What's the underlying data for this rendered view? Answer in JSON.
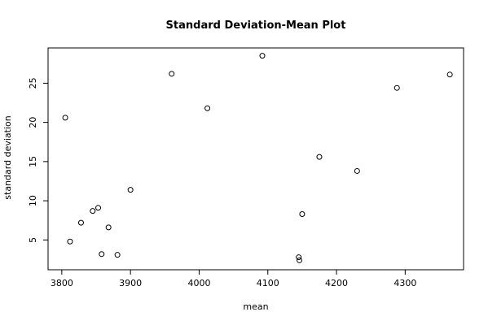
{
  "chart_data": {
    "type": "scatter",
    "title": "Standard Deviation-Mean Plot",
    "xlabel": "mean",
    "ylabel": "standard deviation",
    "xlim": [
      3780,
      4385
    ],
    "ylim": [
      1.2,
      29.5
    ],
    "x_ticks": [
      3800,
      3900,
      4000,
      4100,
      4200,
      4300
    ],
    "y_ticks": [
      5,
      10,
      15,
      20,
      25
    ],
    "grid": false,
    "legend": "none",
    "points": [
      {
        "x": 3805,
        "y": 20.6
      },
      {
        "x": 3812,
        "y": 4.8
      },
      {
        "x": 3828,
        "y": 7.2
      },
      {
        "x": 3845,
        "y": 8.7
      },
      {
        "x": 3853,
        "y": 9.1
      },
      {
        "x": 3858,
        "y": 3.2
      },
      {
        "x": 3868,
        "y": 6.6
      },
      {
        "x": 3881,
        "y": 3.1
      },
      {
        "x": 3900,
        "y": 11.4
      },
      {
        "x": 3960,
        "y": 26.2
      },
      {
        "x": 4012,
        "y": 21.8
      },
      {
        "x": 4092,
        "y": 28.5
      },
      {
        "x": 4145,
        "y": 2.8
      },
      {
        "x": 4146,
        "y": 2.4
      },
      {
        "x": 4150,
        "y": 8.3
      },
      {
        "x": 4175,
        "y": 15.6
      },
      {
        "x": 4230,
        "y": 13.8
      },
      {
        "x": 4288,
        "y": 24.4
      },
      {
        "x": 4365,
        "y": 26.1
      }
    ]
  }
}
